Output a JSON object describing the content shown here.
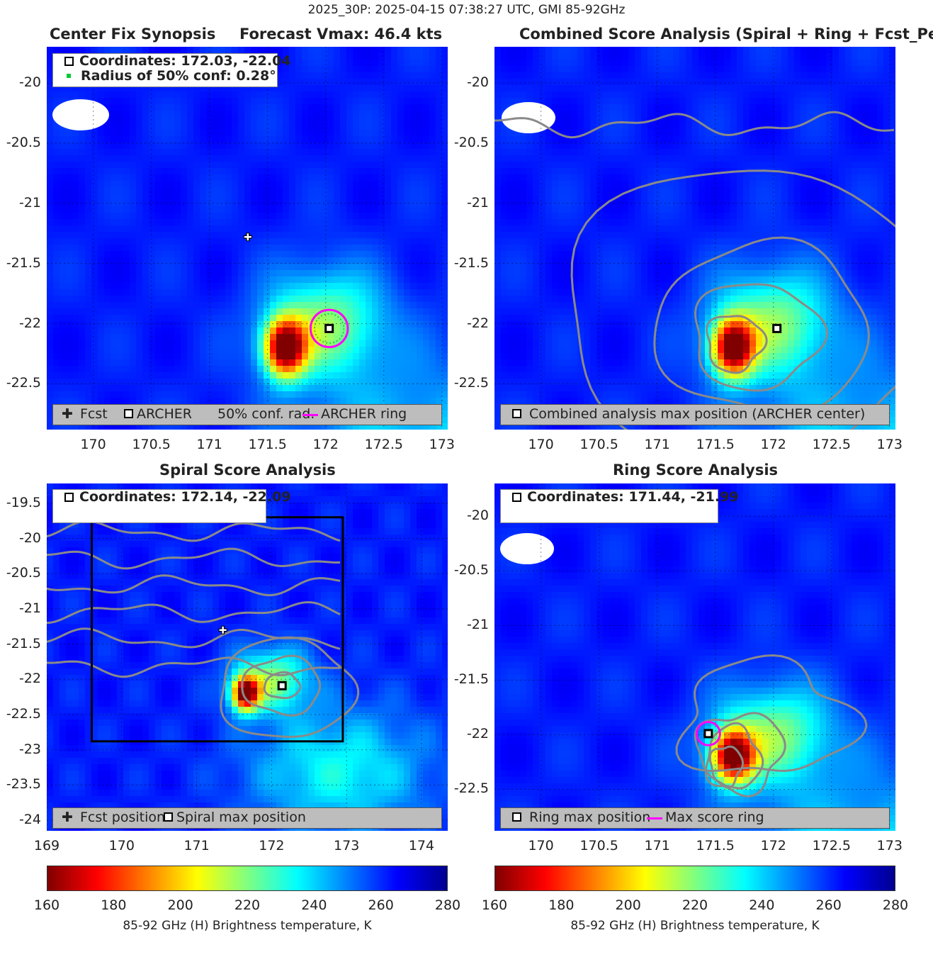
{
  "figure": {
    "title": "2025_30P: 2025-04-15 07:38:27 UTC, GMI 85-92GHz"
  },
  "colors": {
    "colormap": "jet",
    "ring": "#ff00ff",
    "contour": "#8a8a8a",
    "legend_bg": "#bdbdbd",
    "conf_circle": "#22bb22"
  },
  "chart_data": [
    {
      "id": "center-fix",
      "type": "heatmap",
      "title": "Center Fix Synopsis",
      "title_right": "Forecast Vmax: 46.4 kts",
      "xlim": [
        169.6,
        173.05
      ],
      "ylim": [
        -22.88,
        -19.7
      ],
      "xticks": [
        "170",
        "170.5",
        "171",
        "171.5",
        "172",
        "172.5",
        "173"
      ],
      "yticks": [
        "-20",
        "-20.5",
        "-21",
        "-21.5",
        "-22",
        "-22.5"
      ],
      "coordinates_text": "Coordinates: 172.03, -22.04",
      "radius_text": "Radius of 50% conf: 0.28°",
      "forecast_position": [
        171.33,
        -21.28
      ],
      "archer_center": [
        172.03,
        -22.04
      ],
      "ring_radius_deg": 0.16,
      "conf_radius_deg": 0.28,
      "legend": [
        "Fcst",
        "ARCHER",
        "50% conf. rad.",
        "ARCHER ring"
      ]
    },
    {
      "id": "combined",
      "type": "heatmap",
      "title": "Combined Score Analysis (Spiral + Ring + Fcst_Pe",
      "xlim": [
        169.6,
        173.05
      ],
      "ylim": [
        -22.88,
        -19.7
      ],
      "xticks": [
        "170",
        "170.5",
        "171",
        "171.5",
        "172",
        "172.5",
        "173"
      ],
      "yticks": [
        "-20",
        "-20.5",
        "-21",
        "-21.5",
        "-22",
        "-22.5"
      ],
      "max_position": [
        172.03,
        -22.04
      ],
      "legend": [
        "Combined analysis max position (ARCHER center)"
      ]
    },
    {
      "id": "spiral",
      "type": "heatmap",
      "title": "Spiral Score Analysis",
      "xlim": [
        169.0,
        174.35
      ],
      "ylim": [
        -24.15,
        -19.22
      ],
      "xticks": [
        "169",
        "170",
        "171",
        "172",
        "173",
        "174"
      ],
      "yticks": [
        "-19.5",
        "-20",
        "-20.5",
        "-21",
        "-21.5",
        "-22",
        "-22.5",
        "-23",
        "-23.5",
        "-24"
      ],
      "coordinates_text": "Coordinates: 172.14, -22.09",
      "forecast_position": [
        171.35,
        -21.3
      ],
      "max_position": [
        172.14,
        -22.09
      ],
      "search_box": [
        169.6,
        172.95,
        -22.88,
        -19.7
      ],
      "legend": [
        "Fcst position",
        "Spiral max position"
      ]
    },
    {
      "id": "ring",
      "type": "heatmap",
      "title": "Ring Score Analysis",
      "xlim": [
        169.6,
        173.05
      ],
      "ylim": [
        -22.88,
        -19.7
      ],
      "xticks": [
        "170",
        "170.5",
        "171",
        "171.5",
        "172",
        "172.5",
        "173"
      ],
      "yticks": [
        "-20",
        "-20.5",
        "-21",
        "-21.5",
        "-22",
        "-22.5"
      ],
      "coordinates_text": "Coordinates: 171.44, -21.99",
      "max_position": [
        171.44,
        -21.99
      ],
      "ring_radius_deg": 0.1,
      "legend": [
        "Ring max position",
        "Max score ring"
      ]
    }
  ],
  "colorbars": [
    {
      "id": "left",
      "min": 160,
      "max": 280,
      "ticks": [
        "160",
        "180",
        "200",
        "220",
        "240",
        "260",
        "280"
      ],
      "label": "85-92 GHz (H) Brightness temperature, K"
    },
    {
      "id": "right",
      "min": 160,
      "max": 280,
      "ticks": [
        "160",
        "180",
        "200",
        "220",
        "240",
        "260",
        "280"
      ],
      "label": "85-92 GHz (H) Brightness temperature, K"
    }
  ]
}
